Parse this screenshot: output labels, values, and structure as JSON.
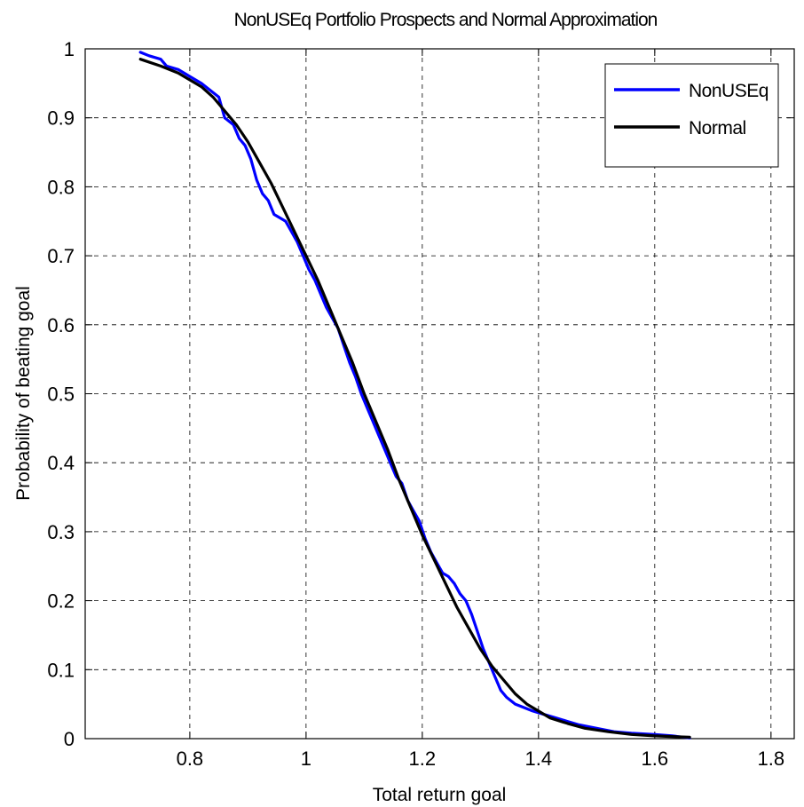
{
  "chart_data": {
    "type": "line",
    "title": "NonUSEq Portfolio Prospects and Normal Approximation",
    "xlabel": "Total return goal",
    "ylabel": "Probability of beating goal",
    "xlim": [
      0.62,
      1.84
    ],
    "ylim": [
      0,
      1
    ],
    "xticks": [
      0.8,
      1.0,
      1.2,
      1.4,
      1.6,
      1.8
    ],
    "xtick_labels": [
      "0.8",
      "1",
      "1.2",
      "1.4",
      "1.6",
      "1.8"
    ],
    "yticks": [
      0,
      0.1,
      0.2,
      0.3,
      0.4,
      0.5,
      0.6,
      0.7,
      0.8,
      0.9,
      1.0
    ],
    "ytick_labels": [
      "0",
      "0.1",
      "0.2",
      "0.3",
      "0.4",
      "0.5",
      "0.6",
      "0.7",
      "0.8",
      "0.9",
      "1"
    ],
    "grid": true,
    "legend_position": "top-right",
    "series": [
      {
        "name": "NonUSEq",
        "color": "#0000ff",
        "points": [
          [
            0.715,
            0.995
          ],
          [
            0.73,
            0.99
          ],
          [
            0.75,
            0.985
          ],
          [
            0.76,
            0.975
          ],
          [
            0.78,
            0.97
          ],
          [
            0.8,
            0.96
          ],
          [
            0.82,
            0.95
          ],
          [
            0.835,
            0.94
          ],
          [
            0.85,
            0.93
          ],
          [
            0.86,
            0.9
          ],
          [
            0.875,
            0.89
          ],
          [
            0.885,
            0.87
          ],
          [
            0.895,
            0.86
          ],
          [
            0.905,
            0.84
          ],
          [
            0.915,
            0.81
          ],
          [
            0.925,
            0.79
          ],
          [
            0.935,
            0.78
          ],
          [
            0.945,
            0.76
          ],
          [
            0.955,
            0.755
          ],
          [
            0.965,
            0.75
          ],
          [
            0.975,
            0.735
          ],
          [
            0.985,
            0.72
          ],
          [
            0.995,
            0.7
          ],
          [
            1.005,
            0.68
          ],
          [
            1.015,
            0.665
          ],
          [
            1.025,
            0.645
          ],
          [
            1.035,
            0.625
          ],
          [
            1.045,
            0.61
          ],
          [
            1.055,
            0.595
          ],
          [
            1.065,
            0.57
          ],
          [
            1.075,
            0.545
          ],
          [
            1.085,
            0.525
          ],
          [
            1.095,
            0.5
          ],
          [
            1.105,
            0.48
          ],
          [
            1.115,
            0.46
          ],
          [
            1.125,
            0.44
          ],
          [
            1.135,
            0.42
          ],
          [
            1.145,
            0.4
          ],
          [
            1.155,
            0.38
          ],
          [
            1.165,
            0.37
          ],
          [
            1.175,
            0.345
          ],
          [
            1.185,
            0.33
          ],
          [
            1.195,
            0.315
          ],
          [
            1.205,
            0.29
          ],
          [
            1.215,
            0.27
          ],
          [
            1.225,
            0.255
          ],
          [
            1.235,
            0.24
          ],
          [
            1.245,
            0.235
          ],
          [
            1.255,
            0.225
          ],
          [
            1.265,
            0.21
          ],
          [
            1.275,
            0.2
          ],
          [
            1.285,
            0.18
          ],
          [
            1.295,
            0.155
          ],
          [
            1.305,
            0.13
          ],
          [
            1.315,
            0.11
          ],
          [
            1.325,
            0.09
          ],
          [
            1.335,
            0.07
          ],
          [
            1.345,
            0.06
          ],
          [
            1.36,
            0.05
          ],
          [
            1.375,
            0.045
          ],
          [
            1.39,
            0.04
          ],
          [
            1.41,
            0.035
          ],
          [
            1.43,
            0.03
          ],
          [
            1.45,
            0.025
          ],
          [
            1.47,
            0.02
          ],
          [
            1.5,
            0.015
          ],
          [
            1.53,
            0.01
          ],
          [
            1.56,
            0.008
          ],
          [
            1.6,
            0.006
          ],
          [
            1.63,
            0.004
          ],
          [
            1.66,
            0.001
          ]
        ]
      },
      {
        "name": "Normal",
        "color": "#000000",
        "points": [
          [
            0.715,
            0.985
          ],
          [
            0.75,
            0.975
          ],
          [
            0.78,
            0.965
          ],
          [
            0.8,
            0.955
          ],
          [
            0.82,
            0.945
          ],
          [
            0.84,
            0.93
          ],
          [
            0.86,
            0.91
          ],
          [
            0.88,
            0.89
          ],
          [
            0.9,
            0.865
          ],
          [
            0.92,
            0.835
          ],
          [
            0.94,
            0.805
          ],
          [
            0.96,
            0.77
          ],
          [
            0.98,
            0.735
          ],
          [
            1.0,
            0.7
          ],
          [
            1.02,
            0.665
          ],
          [
            1.04,
            0.625
          ],
          [
            1.06,
            0.585
          ],
          [
            1.08,
            0.545
          ],
          [
            1.1,
            0.5
          ],
          [
            1.12,
            0.46
          ],
          [
            1.14,
            0.42
          ],
          [
            1.16,
            0.375
          ],
          [
            1.18,
            0.335
          ],
          [
            1.2,
            0.295
          ],
          [
            1.22,
            0.26
          ],
          [
            1.24,
            0.225
          ],
          [
            1.26,
            0.19
          ],
          [
            1.28,
            0.16
          ],
          [
            1.3,
            0.13
          ],
          [
            1.32,
            0.105
          ],
          [
            1.34,
            0.085
          ],
          [
            1.36,
            0.065
          ],
          [
            1.38,
            0.05
          ],
          [
            1.4,
            0.04
          ],
          [
            1.42,
            0.03
          ],
          [
            1.45,
            0.022
          ],
          [
            1.48,
            0.015
          ],
          [
            1.52,
            0.01
          ],
          [
            1.56,
            0.006
          ],
          [
            1.6,
            0.004
          ],
          [
            1.66,
            0.002
          ]
        ]
      }
    ]
  }
}
